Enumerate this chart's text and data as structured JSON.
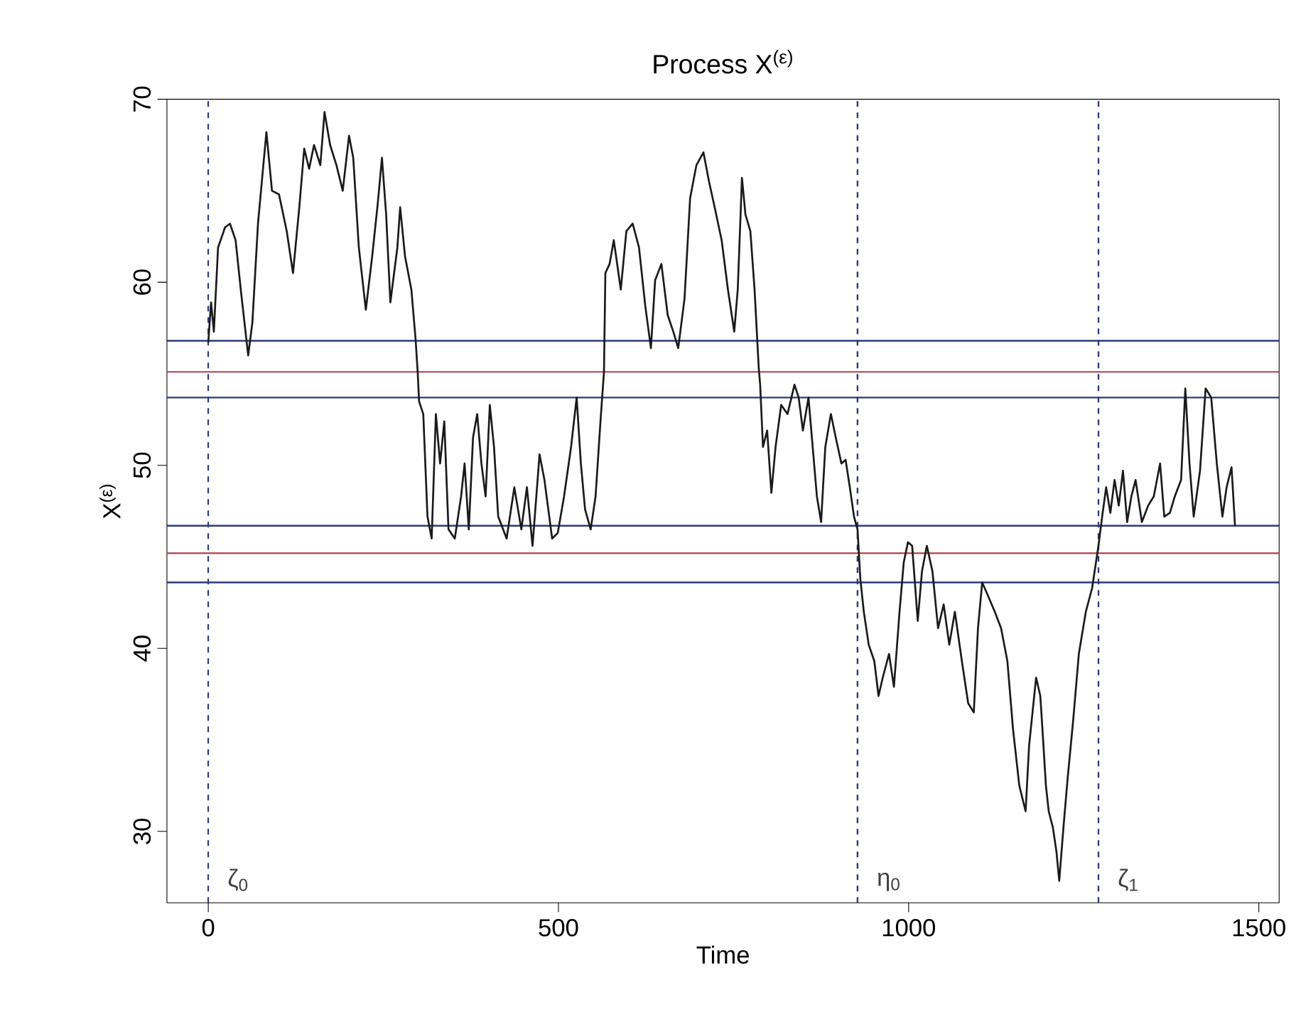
{
  "chart_data": {
    "type": "line",
    "title": "Process X$^{(ε)}$",
    "xlabel": "Time",
    "ylabel": "X$^{(ε)}$",
    "xlim": [
      -59,
      1529
    ],
    "ylim": [
      26.1,
      70
    ],
    "xticks": [
      0,
      500,
      1000,
      1500
    ],
    "yticks": [
      30,
      40,
      50,
      60,
      70
    ],
    "grid": false,
    "line_style": "solid",
    "color": "#1a1a1a",
    "x": [
      0,
      4,
      8,
      14,
      24,
      31,
      39,
      47,
      57,
      63,
      71,
      83,
      91,
      101,
      112,
      121,
      130,
      137,
      144,
      151,
      160,
      166,
      174,
      183,
      192,
      201,
      207,
      215,
      225,
      234,
      242,
      248,
      254,
      260,
      270,
      274,
      281,
      290,
      296,
      299,
      301,
      307,
      313,
      319,
      325,
      331,
      337,
      343,
      352,
      361,
      366,
      372,
      378,
      384,
      390,
      396,
      402,
      408,
      414,
      426,
      437,
      447,
      455,
      463,
      473,
      480,
      491,
      499,
      508,
      518,
      526,
      532,
      538,
      546,
      553,
      560,
      565,
      567,
      573,
      579,
      589,
      597,
      606,
      615,
      624,
      632,
      638,
      647,
      656,
      664,
      671,
      680,
      688,
      697,
      707,
      715,
      723,
      733,
      742,
      751,
      756,
      762,
      767,
      774,
      780,
      786,
      788,
      792,
      798,
      804,
      810,
      818,
      827,
      837,
      843,
      849,
      857,
      863,
      869,
      875,
      881,
      889,
      896,
      904,
      910,
      916,
      922,
      927,
      931,
      936,
      943,
      951,
      957,
      963,
      972,
      979,
      987,
      993,
      999,
      1005,
      1013,
      1019,
      1026,
      1034,
      1042,
      1050,
      1058,
      1066,
      1076,
      1085,
      1093,
      1099,
      1105,
      1113,
      1123,
      1132,
      1141,
      1149,
      1158,
      1167,
      1172,
      1182,
      1188,
      1191,
      1196,
      1200,
      1206,
      1211,
      1215,
      1221,
      1227,
      1235,
      1243,
      1253,
      1262,
      1271,
      1277,
      1282,
      1288,
      1294,
      1300,
      1306,
      1312,
      1318,
      1324,
      1333,
      1342,
      1350,
      1359,
      1365,
      1373,
      1380,
      1389,
      1395,
      1401,
      1407,
      1416,
      1424,
      1432,
      1440,
      1448,
      1454,
      1461,
      1466
    ],
    "values": [
      56.7,
      58.9,
      57.3,
      61.9,
      63.0,
      63.2,
      62.3,
      59.4,
      56.0,
      57.8,
      63.2,
      68.2,
      65.0,
      64.8,
      62.8,
      60.5,
      64.1,
      67.3,
      66.2,
      67.5,
      66.4,
      69.3,
      67.5,
      66.4,
      65.0,
      68.0,
      66.8,
      61.9,
      58.5,
      61.4,
      64.3,
      66.8,
      63.7,
      58.9,
      61.9,
      64.1,
      61.4,
      59.6,
      56.9,
      55.1,
      53.5,
      52.8,
      47.2,
      46.0,
      52.8,
      50.1,
      52.4,
      46.5,
      46.0,
      48.3,
      50.1,
      46.5,
      51.5,
      52.8,
      50.1,
      48.3,
      53.3,
      51.0,
      47.2,
      46.0,
      48.8,
      46.5,
      48.8,
      45.6,
      50.6,
      49.2,
      46.0,
      46.3,
      48.3,
      51.0,
      53.7,
      50.1,
      47.6,
      46.5,
      48.3,
      52.4,
      55.1,
      60.5,
      61.0,
      62.3,
      59.6,
      62.8,
      63.2,
      61.9,
      58.7,
      56.4,
      60.1,
      61.0,
      58.2,
      57.3,
      56.4,
      59.1,
      64.6,
      66.4,
      67.1,
      65.5,
      64.1,
      62.3,
      59.6,
      57.3,
      59.6,
      65.7,
      63.7,
      62.8,
      59.6,
      55.3,
      54.4,
      51.0,
      51.9,
      48.5,
      51.0,
      53.3,
      52.8,
      54.4,
      53.7,
      51.9,
      53.7,
      51.0,
      48.3,
      46.9,
      51.0,
      52.8,
      51.5,
      50.1,
      50.3,
      48.8,
      47.2,
      46.5,
      43.8,
      42.0,
      40.2,
      39.3,
      37.4,
      38.4,
      39.7,
      37.9,
      42.0,
      44.7,
      45.8,
      45.6,
      41.5,
      44.2,
      45.6,
      44.2,
      41.1,
      42.4,
      40.2,
      42.0,
      39.3,
      37.0,
      36.5,
      41.1,
      43.6,
      42.9,
      42.0,
      41.1,
      39.3,
      35.6,
      32.5,
      31.1,
      34.7,
      38.4,
      37.4,
      35.6,
      32.5,
      31.1,
      30.2,
      28.9,
      27.3,
      30.2,
      32.9,
      36.1,
      39.7,
      42.0,
      43.3,
      45.6,
      47.4,
      48.8,
      47.4,
      49.2,
      47.8,
      49.7,
      46.9,
      48.3,
      49.2,
      46.9,
      47.8,
      48.3,
      50.1,
      47.2,
      47.4,
      48.3,
      49.2,
      54.2,
      50.1,
      47.2,
      49.7,
      54.2,
      53.7,
      50.1,
      47.2,
      48.8,
      49.9,
      46.7
    ],
    "ref_lines": [
      {
        "axis": "y",
        "value": 56.8,
        "color": "#2e3a78"
      },
      {
        "axis": "y",
        "value": 55.1,
        "color": "#b0404f"
      },
      {
        "axis": "y",
        "value": 53.7,
        "color": "#2e3a78"
      },
      {
        "axis": "y",
        "value": 46.7,
        "color": "#2e3a78"
      },
      {
        "axis": "y",
        "value": 45.2,
        "color": "#b0404f"
      },
      {
        "axis": "y",
        "value": 43.6,
        "color": "#2e3a78"
      },
      {
        "axis": "x",
        "value": 0,
        "label": "ζ$_{0}$",
        "color": "#2e3a78",
        "line_style": "dashed"
      },
      {
        "axis": "x",
        "value": 927,
        "label": "η$_{0}$",
        "color": "#2e3a78",
        "line_style": "dashed"
      },
      {
        "axis": "x",
        "value": 1271,
        "label": "ζ$_{1}$",
        "color": "#2e3a78",
        "line_style": "dashed"
      }
    ]
  }
}
